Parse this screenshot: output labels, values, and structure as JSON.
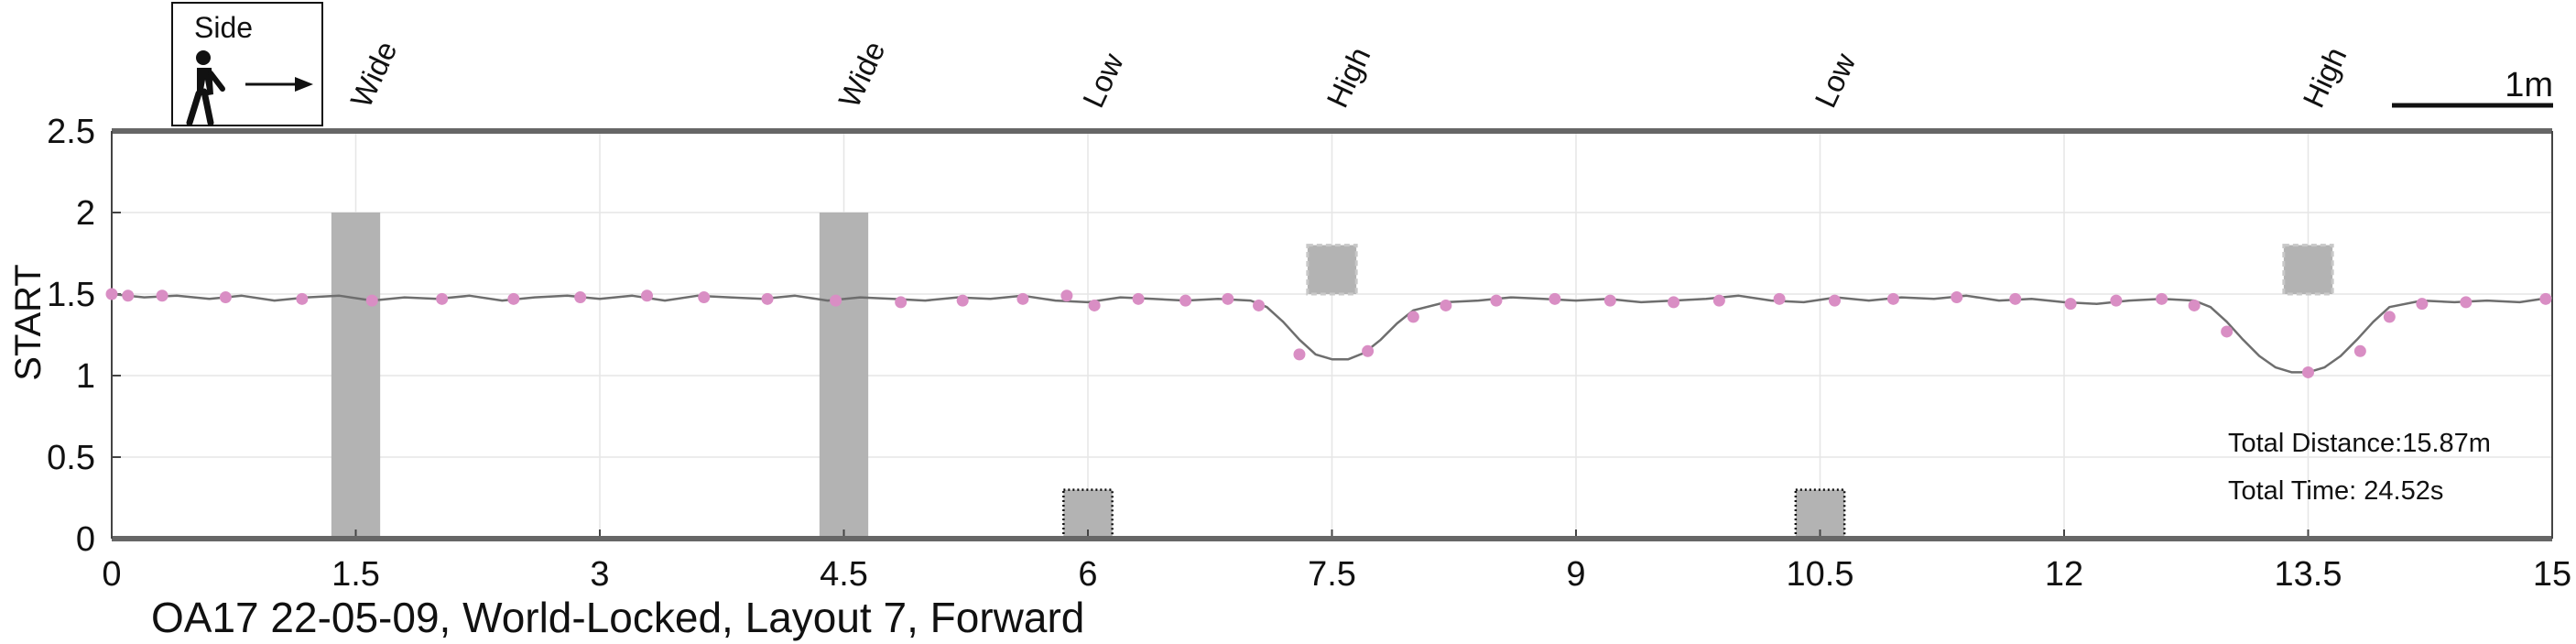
{
  "chart_data": {
    "type": "line",
    "title": "",
    "caption": "OA17 22-05-09, World-Locked, Layout 7, Forward",
    "xlabel": "",
    "ylabel": "START",
    "xlim": [
      0,
      15
    ],
    "ylim": [
      0,
      2.5
    ],
    "x_ticks": [
      "0",
      "1.5",
      "3",
      "4.5",
      "6",
      "7.5",
      "9",
      "10.5",
      "12",
      "13.5",
      "15"
    ],
    "y_ticks": [
      "0",
      "0.5",
      "1",
      "1.5",
      "2",
      "2.5"
    ],
    "grid": true,
    "legend": {
      "label": "Side",
      "icon": "walking-person-icon",
      "placement": "top-left"
    },
    "scale_bar": {
      "label": "1m",
      "length_m": 1
    },
    "annotations": [
      "Total Distance:15.87m",
      "Total Time: 24.52s"
    ],
    "colors": {
      "path": "#6e6e6e",
      "markers": "#d98ec4",
      "obstacle": "#b3b3b3",
      "axis": "#666666"
    },
    "obstacles": [
      {
        "label": "Wide",
        "x": 1.5,
        "width": 0.3,
        "y0": 0,
        "y1": 2.0,
        "style": "solid"
      },
      {
        "label": "Wide",
        "x": 4.5,
        "width": 0.3,
        "y0": 0,
        "y1": 2.0,
        "style": "solid"
      },
      {
        "label": "Low",
        "x": 6.0,
        "width": 0.3,
        "y0": 0,
        "y1": 0.3,
        "style": "dotted"
      },
      {
        "label": "High",
        "x": 7.5,
        "width": 0.3,
        "y0": 1.5,
        "y1": 1.8,
        "style": "dashed"
      },
      {
        "label": "Low",
        "x": 10.5,
        "width": 0.3,
        "y0": 0,
        "y1": 0.3,
        "style": "dotted"
      },
      {
        "label": "High",
        "x": 13.5,
        "width": 0.3,
        "y0": 1.5,
        "y1": 1.8,
        "style": "dashed"
      }
    ],
    "series": [
      {
        "line": {
          "x": [
            0,
            0.2,
            0.4,
            0.6,
            0.8,
            1.0,
            1.2,
            1.4,
            1.6,
            1.8,
            2.0,
            2.2,
            2.4,
            2.6,
            2.8,
            3.0,
            3.2,
            3.4,
            3.6,
            3.8,
            4.0,
            4.2,
            4.4,
            4.6,
            4.8,
            5.0,
            5.2,
            5.4,
            5.6,
            5.8,
            6.0,
            6.2,
            6.4,
            6.6,
            6.8,
            7.0,
            7.1,
            7.2,
            7.3,
            7.4,
            7.5,
            7.6,
            7.7,
            7.8,
            7.9,
            8.0,
            8.2,
            8.4,
            8.6,
            8.8,
            9.0,
            9.2,
            9.4,
            9.6,
            9.8,
            10.0,
            10.2,
            10.4,
            10.6,
            10.8,
            11.0,
            11.2,
            11.4,
            11.6,
            11.8,
            12.0,
            12.2,
            12.4,
            12.6,
            12.8,
            12.9,
            13.0,
            13.1,
            13.2,
            13.3,
            13.4,
            13.5,
            13.6,
            13.7,
            13.8,
            13.9,
            14.0,
            14.2,
            14.4,
            14.6,
            14.8,
            15.0
          ],
          "y": [
            1.5,
            1.48,
            1.49,
            1.47,
            1.49,
            1.46,
            1.48,
            1.49,
            1.46,
            1.48,
            1.47,
            1.49,
            1.46,
            1.48,
            1.49,
            1.47,
            1.49,
            1.46,
            1.49,
            1.48,
            1.47,
            1.49,
            1.46,
            1.48,
            1.47,
            1.46,
            1.48,
            1.47,
            1.49,
            1.46,
            1.45,
            1.48,
            1.47,
            1.46,
            1.47,
            1.46,
            1.42,
            1.33,
            1.22,
            1.13,
            1.1,
            1.1,
            1.14,
            1.22,
            1.32,
            1.4,
            1.45,
            1.46,
            1.48,
            1.47,
            1.46,
            1.47,
            1.45,
            1.46,
            1.47,
            1.49,
            1.46,
            1.45,
            1.48,
            1.46,
            1.48,
            1.47,
            1.49,
            1.46,
            1.47,
            1.45,
            1.44,
            1.46,
            1.47,
            1.46,
            1.42,
            1.33,
            1.22,
            1.12,
            1.05,
            1.02,
            1.02,
            1.05,
            1.12,
            1.22,
            1.33,
            1.42,
            1.46,
            1.45,
            1.46,
            1.45,
            1.48
          ]
        },
        "markers": {
          "x": [
            0.0,
            0.1,
            0.31,
            0.7,
            1.17,
            1.6,
            2.03,
            2.47,
            2.88,
            3.29,
            3.64,
            4.03,
            4.45,
            4.85,
            5.23,
            5.6,
            5.87,
            6.04,
            6.31,
            6.6,
            6.86,
            7.05,
            7.3,
            7.72,
            8.0,
            8.2,
            8.51,
            8.87,
            9.21,
            9.6,
            9.88,
            10.25,
            10.59,
            10.95,
            11.34,
            11.7,
            12.04,
            12.32,
            12.6,
            12.8,
            13.0,
            13.5,
            13.82,
            14.0,
            14.2,
            14.47,
            14.96
          ],
          "y": [
            1.5,
            1.49,
            1.49,
            1.48,
            1.47,
            1.46,
            1.47,
            1.47,
            1.48,
            1.49,
            1.48,
            1.47,
            1.46,
            1.45,
            1.46,
            1.47,
            1.49,
            1.43,
            1.47,
            1.46,
            1.47,
            1.43,
            1.13,
            1.15,
            1.36,
            1.43,
            1.46,
            1.47,
            1.46,
            1.45,
            1.46,
            1.47,
            1.46,
            1.47,
            1.48,
            1.47,
            1.44,
            1.46,
            1.47,
            1.43,
            1.27,
            1.02,
            1.15,
            1.36,
            1.44,
            1.45,
            1.47
          ]
        }
      }
    ]
  }
}
